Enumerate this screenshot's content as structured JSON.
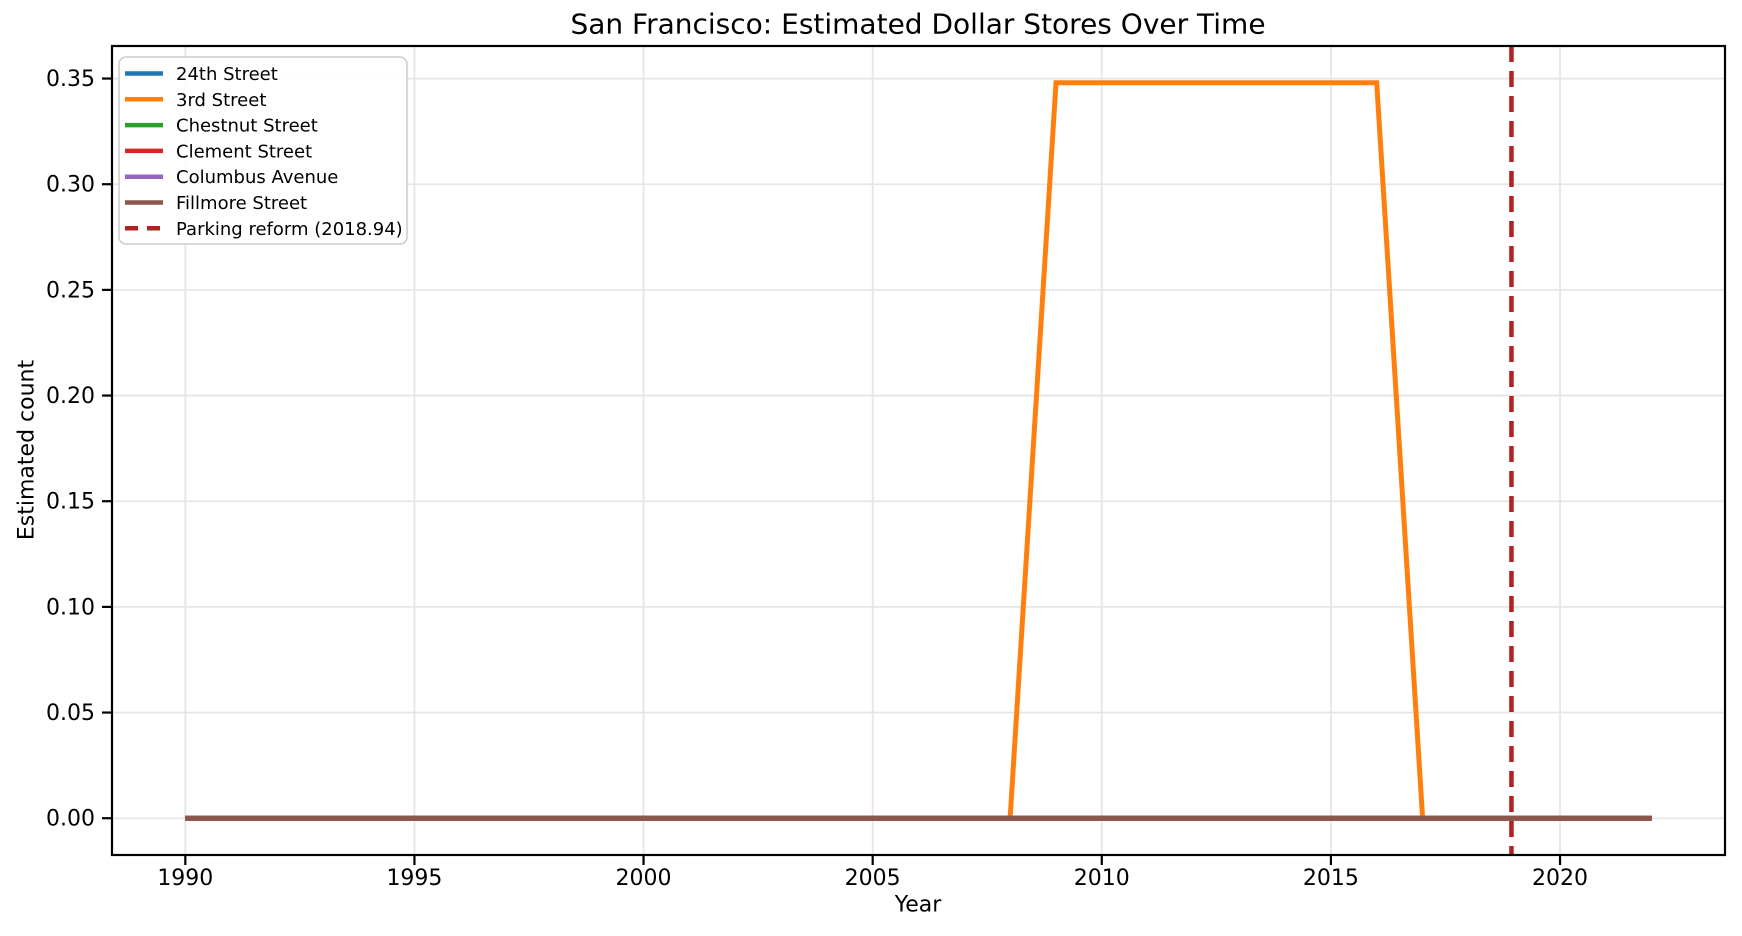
{
  "figure": {
    "title": "San Francisco: Estimated Dollar Stores Over Time",
    "xlabel": "Year",
    "ylabel": "Estimated count"
  },
  "chart_data": {
    "type": "line",
    "title": "San Francisco: Estimated Dollar Stores Over Time",
    "xlabel": "Year",
    "ylabel": "Estimated count",
    "grid": true,
    "legend_position": "upper left",
    "xlim": [
      1988.4,
      2023.6
    ],
    "ylim": [
      -0.0174,
      0.3654
    ],
    "xticks": {
      "values": [
        1990,
        1995,
        2000,
        2005,
        2010,
        2015,
        2020
      ],
      "labels": [
        "1990",
        "1995",
        "2000",
        "2005",
        "2010",
        "2015",
        "2020"
      ]
    },
    "yticks": {
      "values": [
        0.0,
        0.05,
        0.1,
        0.15,
        0.2,
        0.25,
        0.3,
        0.35
      ],
      "labels": [
        "0.00",
        "0.05",
        "0.10",
        "0.15",
        "0.20",
        "0.25",
        "0.30",
        "0.35"
      ]
    },
    "x": [
      1990,
      1991,
      1992,
      1993,
      1994,
      1995,
      1996,
      1997,
      1998,
      1999,
      2000,
      2001,
      2002,
      2003,
      2004,
      2005,
      2006,
      2007,
      2008,
      2009,
      2010,
      2011,
      2012,
      2013,
      2014,
      2015,
      2016,
      2017,
      2018,
      2019,
      2020,
      2021,
      2022
    ],
    "series": [
      {
        "name": "24th Street",
        "color": "#1f77b4",
        "values": [
          0,
          0,
          0,
          0,
          0,
          0,
          0,
          0,
          0,
          0,
          0,
          0,
          0,
          0,
          0,
          0,
          0,
          0,
          0,
          0,
          0,
          0,
          0,
          0,
          0,
          0,
          0,
          0,
          0,
          0,
          0,
          0,
          0
        ]
      },
      {
        "name": "3rd Street",
        "color": "#ff7f0e",
        "values": [
          0,
          0,
          0,
          0,
          0,
          0,
          0,
          0,
          0,
          0,
          0,
          0,
          0,
          0,
          0,
          0,
          0,
          0,
          0,
          0.348,
          0.348,
          0.348,
          0.348,
          0.348,
          0.348,
          0.348,
          0.348,
          0,
          0,
          0,
          0,
          0,
          0
        ]
      },
      {
        "name": "Chestnut Street",
        "color": "#2ca02c",
        "values": [
          0,
          0,
          0,
          0,
          0,
          0,
          0,
          0,
          0,
          0,
          0,
          0,
          0,
          0,
          0,
          0,
          0,
          0,
          0,
          0,
          0,
          0,
          0,
          0,
          0,
          0,
          0,
          0,
          0,
          0,
          0,
          0,
          0
        ]
      },
      {
        "name": "Clement Street",
        "color": "#d62728",
        "values": [
          0,
          0,
          0,
          0,
          0,
          0,
          0,
          0,
          0,
          0,
          0,
          0,
          0,
          0,
          0,
          0,
          0,
          0,
          0,
          0,
          0,
          0,
          0,
          0,
          0,
          0,
          0,
          0,
          0,
          0,
          0,
          0,
          0
        ]
      },
      {
        "name": "Columbus Avenue",
        "color": "#9467bd",
        "values": [
          0,
          0,
          0,
          0,
          0,
          0,
          0,
          0,
          0,
          0,
          0,
          0,
          0,
          0,
          0,
          0,
          0,
          0,
          0,
          0,
          0,
          0,
          0,
          0,
          0,
          0,
          0,
          0,
          0,
          0,
          0,
          0,
          0
        ]
      },
      {
        "name": "Fillmore Street",
        "color": "#8c564b",
        "values": [
          0,
          0,
          0,
          0,
          0,
          0,
          0,
          0,
          0,
          0,
          0,
          0,
          0,
          0,
          0,
          0,
          0,
          0,
          0,
          0,
          0,
          0,
          0,
          0,
          0,
          0,
          0,
          0,
          0,
          0,
          0,
          0,
          0
        ]
      }
    ],
    "vline": {
      "label": "Parking reform (2018.94)",
      "x": 2018.94,
      "color": "#b22222",
      "style": "dashed"
    },
    "colors": {
      "grid": "#e6e6e6",
      "spine": "#000000",
      "legend_border": "#cccccc",
      "background": "#ffffff"
    }
  }
}
